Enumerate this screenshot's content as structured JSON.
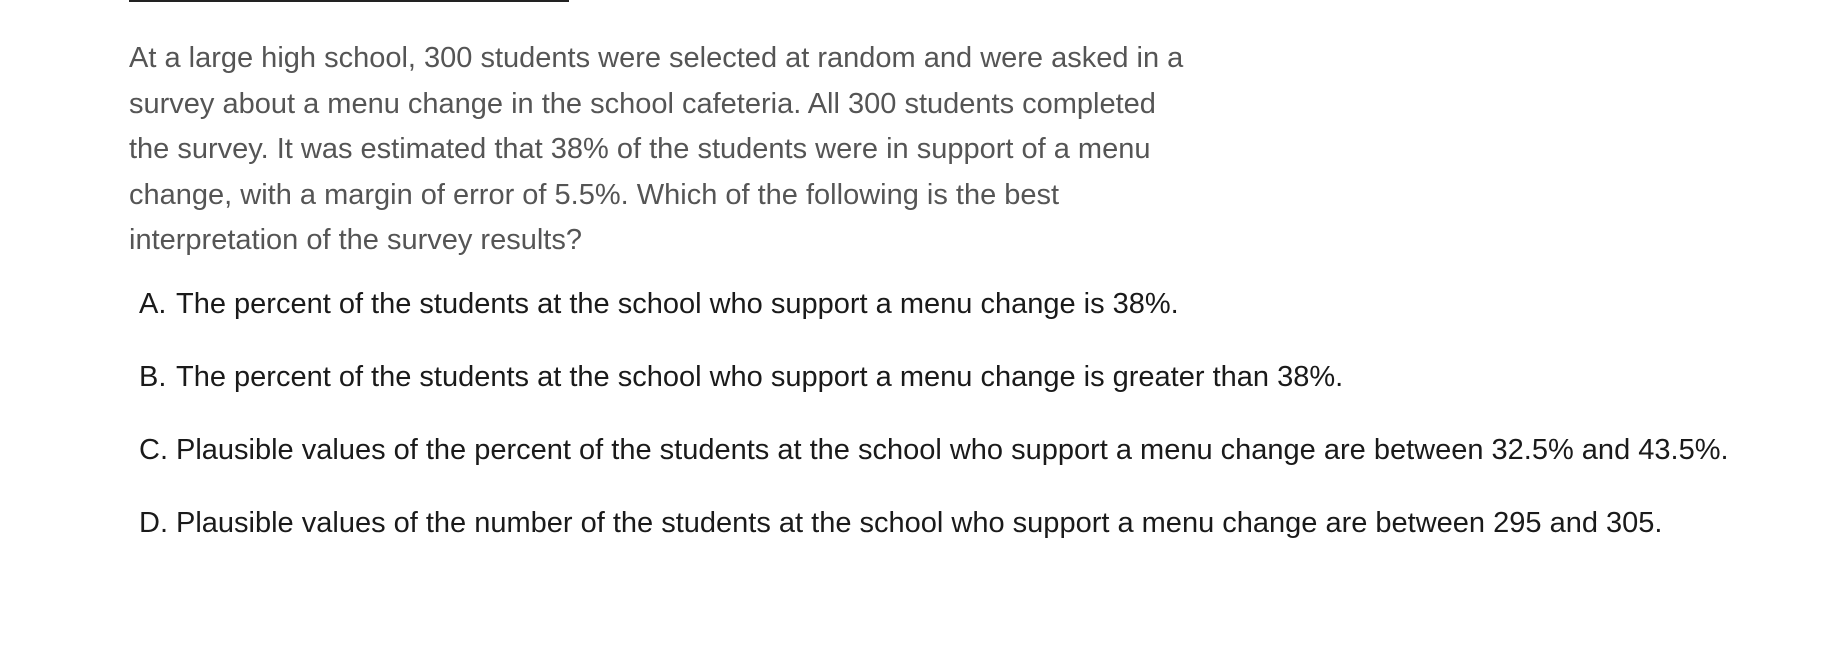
{
  "question": {
    "text": "At a large high school, 300 students were selected at random and were asked in a survey about a menu change in the school cafeteria. All 300 students completed the survey. It was estimated that 38% of the students were in support of a menu change, with a margin of error of 5.5%. Which of the following is the best interpretation of the survey results?"
  },
  "options": [
    {
      "letter": "A.",
      "text": "The percent of the students at the school who support a menu change is 38%."
    },
    {
      "letter": "B.",
      "text": "The percent of the students at the school who support a menu change is greater than 38%."
    },
    {
      "letter": "C.",
      "text": "Plausible values of the percent of the students at the school who support a menu change are between 32.5% and 43.5%."
    },
    {
      "letter": "D.",
      "text": "Plausible values of the number of the students at the school who support a menu change are between 295 and 305."
    }
  ]
}
